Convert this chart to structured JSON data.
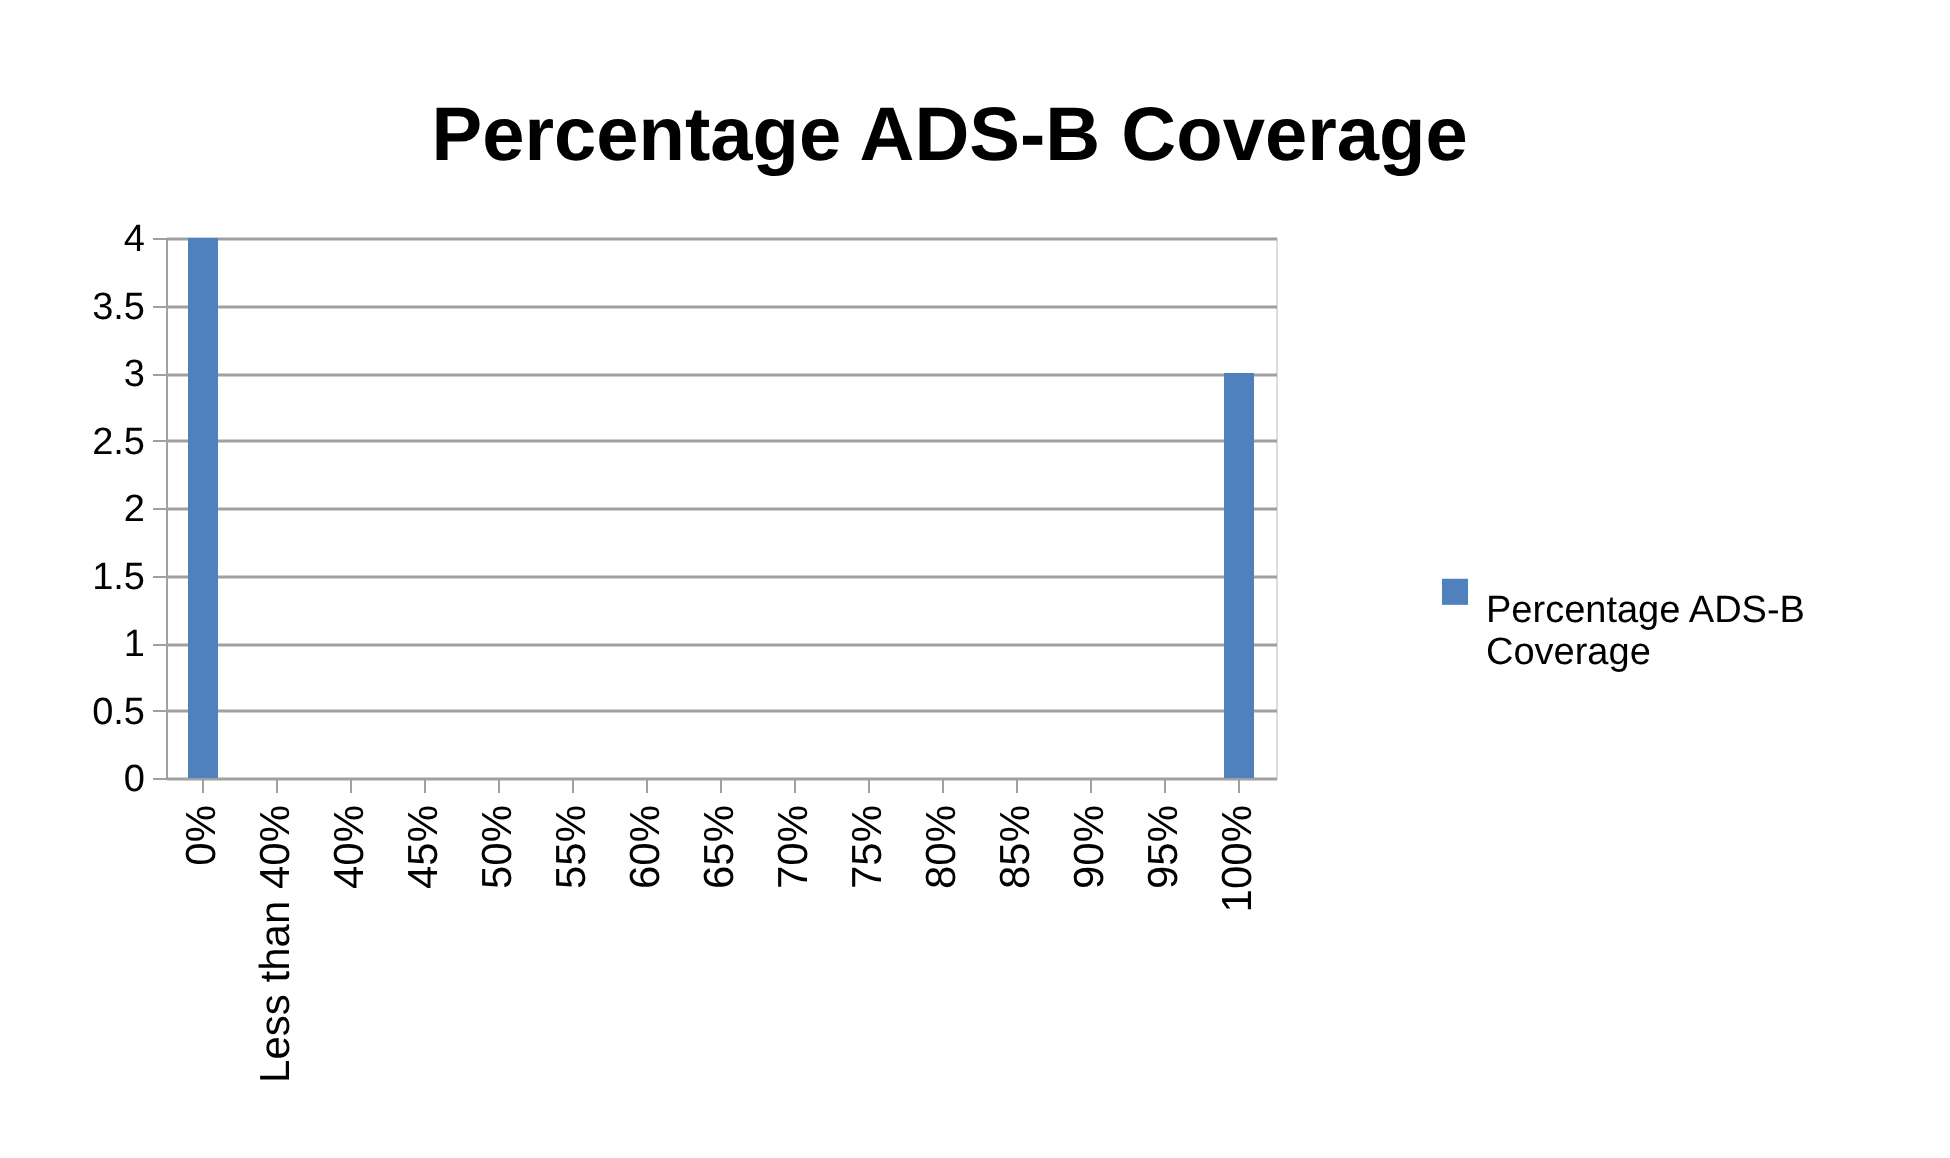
{
  "chart_data": {
    "type": "bar",
    "title": "Percentage ADS-B Coverage",
    "categories": [
      "0%",
      "Less than 40%",
      "40%",
      "45%",
      "50%",
      "55%",
      "60%",
      "65%",
      "70%",
      "75%",
      "80%",
      "85%",
      "90%",
      "95%",
      "100%"
    ],
    "series": [
      {
        "name": "Percentage ADS-B Coverage",
        "color": "#4f81bd",
        "values": [
          4,
          0,
          0,
          0,
          0,
          0,
          0,
          0,
          0,
          0,
          0,
          0,
          0,
          0,
          3
        ]
      }
    ],
    "ylim": [
      0,
      4
    ],
    "yticks": [
      0,
      0.5,
      1,
      1.5,
      2,
      2.5,
      3,
      3.5,
      4
    ],
    "grid": "y",
    "legend": "right"
  }
}
